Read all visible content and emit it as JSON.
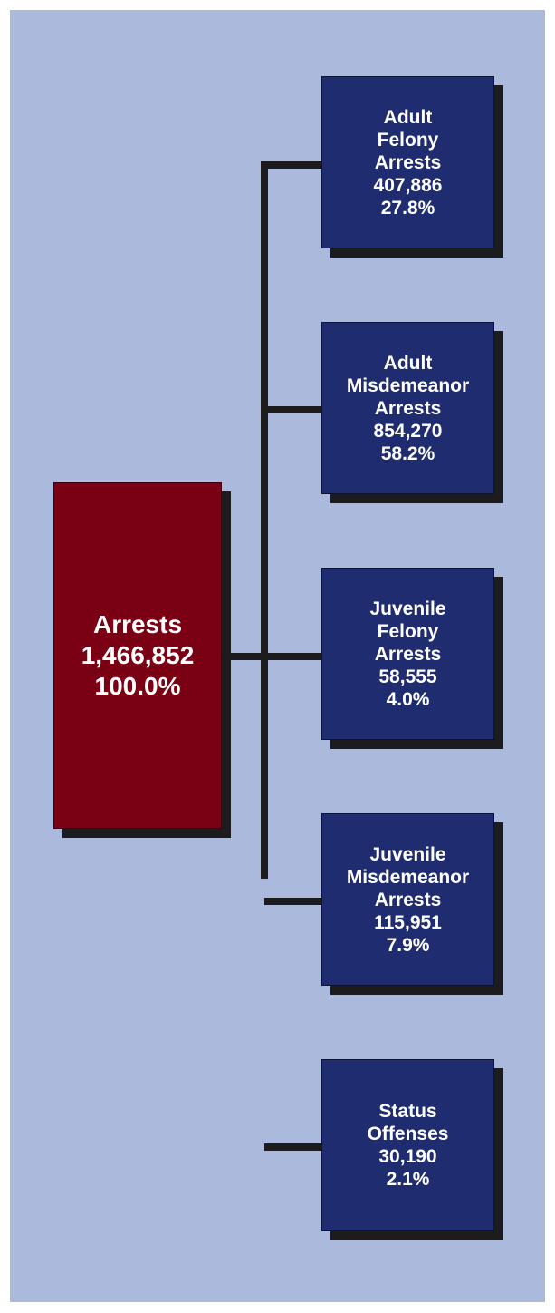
{
  "root": {
    "label": "Arrests",
    "count": "1,466,852",
    "percent": "100.0%"
  },
  "children": [
    {
      "label_lines": [
        "Adult",
        "Felony",
        "Arrests"
      ],
      "count": "407,886",
      "percent": "27.8%"
    },
    {
      "label_lines": [
        "Adult",
        "Misdemeanor",
        "Arrests"
      ],
      "count": "854,270",
      "percent": "58.2%"
    },
    {
      "label_lines": [
        "Juvenile",
        "Felony",
        "Arrests"
      ],
      "count": "58,555",
      "percent": "4.0%"
    },
    {
      "label_lines": [
        "Juvenile",
        "Misdemeanor",
        "Arrests"
      ],
      "count": "115,951",
      "percent": "7.9%"
    },
    {
      "label_lines": [
        "Status",
        "Offenses"
      ],
      "count": "30,190",
      "percent": "2.1%"
    }
  ],
  "colors": {
    "panel_background": "#aab9dc",
    "root_box": "#7a0013",
    "child_box": "#1f2c6f",
    "connector": "#1c1b1d",
    "text": "#ffffff"
  }
}
